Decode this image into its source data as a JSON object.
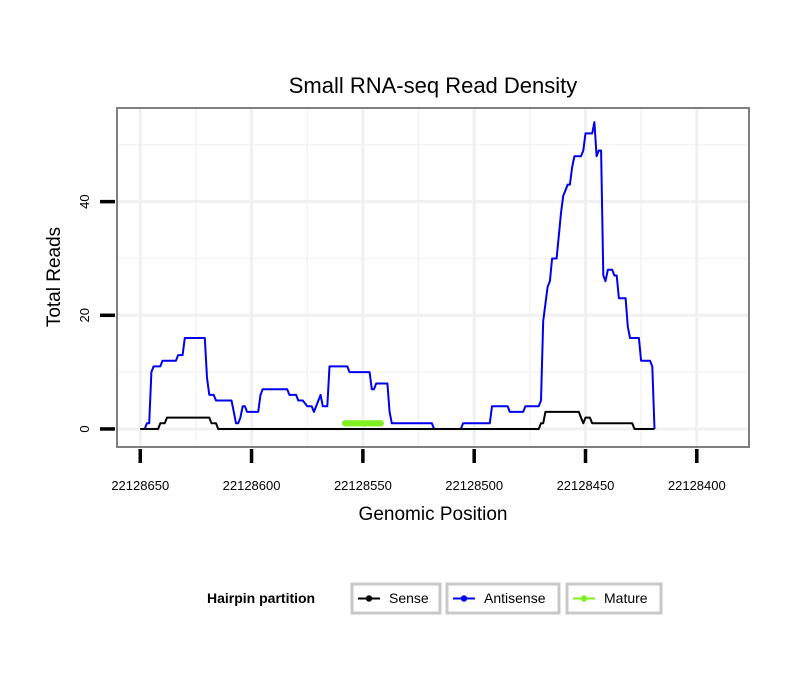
{
  "chart_data": {
    "type": "line",
    "title": "Small RNA-seq Read Density",
    "xlabel": "Genomic Position",
    "ylabel": "Total Reads",
    "xlim": [
      22128660,
      22128377
    ],
    "x_reversed": true,
    "ylim": [
      -3,
      56.3
    ],
    "x_ticks": [
      22128650,
      22128600,
      22128550,
      22128500,
      22128450,
      22128400
    ],
    "x_tick_labels": [
      "22128650",
      "22128600",
      "22128550",
      "22128500",
      "22128450",
      "22128400"
    ],
    "y_ticks": [
      0,
      20,
      40
    ],
    "y_tick_labels": [
      "0",
      "20",
      "40"
    ],
    "grid": true,
    "legend": {
      "title": "Hairpin partition",
      "position": "bottom",
      "entries": [
        "Sense",
        "Antisense",
        "Mature"
      ]
    },
    "series": [
      {
        "name": "Antisense",
        "color": "#0000ee",
        "points": [
          [
            22128650,
            0
          ],
          [
            22128648,
            0
          ],
          [
            22128647,
            1
          ],
          [
            22128646,
            1
          ],
          [
            22128645,
            10
          ],
          [
            22128644,
            11
          ],
          [
            22128641,
            11
          ],
          [
            22128640,
            12
          ],
          [
            22128634,
            12
          ],
          [
            22128633,
            13
          ],
          [
            22128631,
            13
          ],
          [
            22128630,
            16
          ],
          [
            22128621,
            16
          ],
          [
            22128620,
            9
          ],
          [
            22128619,
            6
          ],
          [
            22128617,
            6
          ],
          [
            22128616,
            5
          ],
          [
            22128609,
            5
          ],
          [
            22128608,
            3
          ],
          [
            22128607,
            1
          ],
          [
            22128606,
            1
          ],
          [
            22128605,
            2
          ],
          [
            22128604,
            4
          ],
          [
            22128603,
            4
          ],
          [
            22128602,
            3
          ],
          [
            22128597,
            3
          ],
          [
            22128596,
            6
          ],
          [
            22128595,
            7
          ],
          [
            22128584,
            7
          ],
          [
            22128583,
            6
          ],
          [
            22128580,
            6
          ],
          [
            22128579,
            5
          ],
          [
            22128577,
            5
          ],
          [
            22128575,
            4
          ],
          [
            22128573,
            4
          ],
          [
            22128572,
            3
          ],
          [
            22128570,
            5
          ],
          [
            22128569,
            6
          ],
          [
            22128568,
            4
          ],
          [
            22128566,
            4
          ],
          [
            22128565,
            11
          ],
          [
            22128557,
            11
          ],
          [
            22128556,
            10
          ],
          [
            22128547,
            10
          ],
          [
            22128546,
            7
          ],
          [
            22128545,
            7
          ],
          [
            22128544,
            8
          ],
          [
            22128539,
            8
          ],
          [
            22128538,
            3
          ],
          [
            22128537,
            1
          ],
          [
            22128528,
            1
          ],
          [
            22128519,
            1
          ],
          [
            22128518,
            0
          ],
          [
            22128506,
            0
          ],
          [
            22128505,
            1
          ],
          [
            22128493,
            1
          ],
          [
            22128492,
            4
          ],
          [
            22128485,
            4
          ],
          [
            22128484,
            3
          ],
          [
            22128478,
            3
          ],
          [
            22128477,
            4
          ],
          [
            22128471,
            4
          ],
          [
            22128470,
            5
          ],
          [
            22128469,
            19
          ],
          [
            22128467,
            25
          ],
          [
            22128466,
            26
          ],
          [
            22128465,
            30
          ],
          [
            22128463,
            30
          ],
          [
            22128461,
            38
          ],
          [
            22128460,
            41
          ],
          [
            22128459,
            42
          ],
          [
            22128458,
            43
          ],
          [
            22128457,
            43
          ],
          [
            22128456,
            46
          ],
          [
            22128455,
            48
          ],
          [
            22128452,
            48
          ],
          [
            22128451,
            49
          ],
          [
            22128450,
            52
          ],
          [
            22128447,
            52
          ],
          [
            22128446,
            54
          ],
          [
            22128445,
            48
          ],
          [
            22128444,
            49
          ],
          [
            22128443,
            49
          ],
          [
            22128442,
            27
          ],
          [
            22128441,
            26
          ],
          [
            22128440,
            28
          ],
          [
            22128438,
            28
          ],
          [
            22128437,
            27
          ],
          [
            22128436,
            27
          ],
          [
            22128435,
            23
          ],
          [
            22128432,
            23
          ],
          [
            22128431,
            18
          ],
          [
            22128430,
            16
          ],
          [
            22128426,
            16
          ],
          [
            22128425,
            12
          ],
          [
            22128421,
            12
          ],
          [
            22128420,
            11
          ],
          [
            22128419,
            0
          ]
        ]
      },
      {
        "name": "Sense",
        "color": "#000000",
        "points": [
          [
            22128650,
            0
          ],
          [
            22128642,
            0
          ],
          [
            22128641,
            1
          ],
          [
            22128639,
            1
          ],
          [
            22128638,
            2
          ],
          [
            22128619,
            2
          ],
          [
            22128618,
            1
          ],
          [
            22128616,
            1
          ],
          [
            22128615,
            0
          ],
          [
            22128471,
            0
          ],
          [
            22128470,
            1
          ],
          [
            22128469,
            1
          ],
          [
            22128468,
            3
          ],
          [
            22128453,
            3
          ],
          [
            22128452,
            2
          ],
          [
            22128451,
            1
          ],
          [
            22128450,
            2
          ],
          [
            22128448,
            2
          ],
          [
            22128447,
            1
          ],
          [
            22128429,
            1
          ],
          [
            22128428,
            0
          ],
          [
            22128421,
            0
          ],
          [
            22128419,
            0
          ]
        ]
      },
      {
        "name": "Mature",
        "color": "#7fef22",
        "points": [
          [
            22128558,
            1
          ],
          [
            22128557,
            1
          ],
          [
            22128556,
            1
          ],
          [
            22128555,
            1
          ],
          [
            22128554,
            1
          ],
          [
            22128553,
            1
          ],
          [
            22128552,
            1
          ],
          [
            22128551,
            1
          ],
          [
            22128550,
            1
          ],
          [
            22128549,
            1
          ],
          [
            22128548,
            1
          ],
          [
            22128547,
            1
          ],
          [
            22128546,
            1
          ],
          [
            22128545,
            1
          ],
          [
            22128544,
            1
          ],
          [
            22128543,
            1
          ],
          [
            22128542,
            1
          ]
        ]
      }
    ]
  }
}
